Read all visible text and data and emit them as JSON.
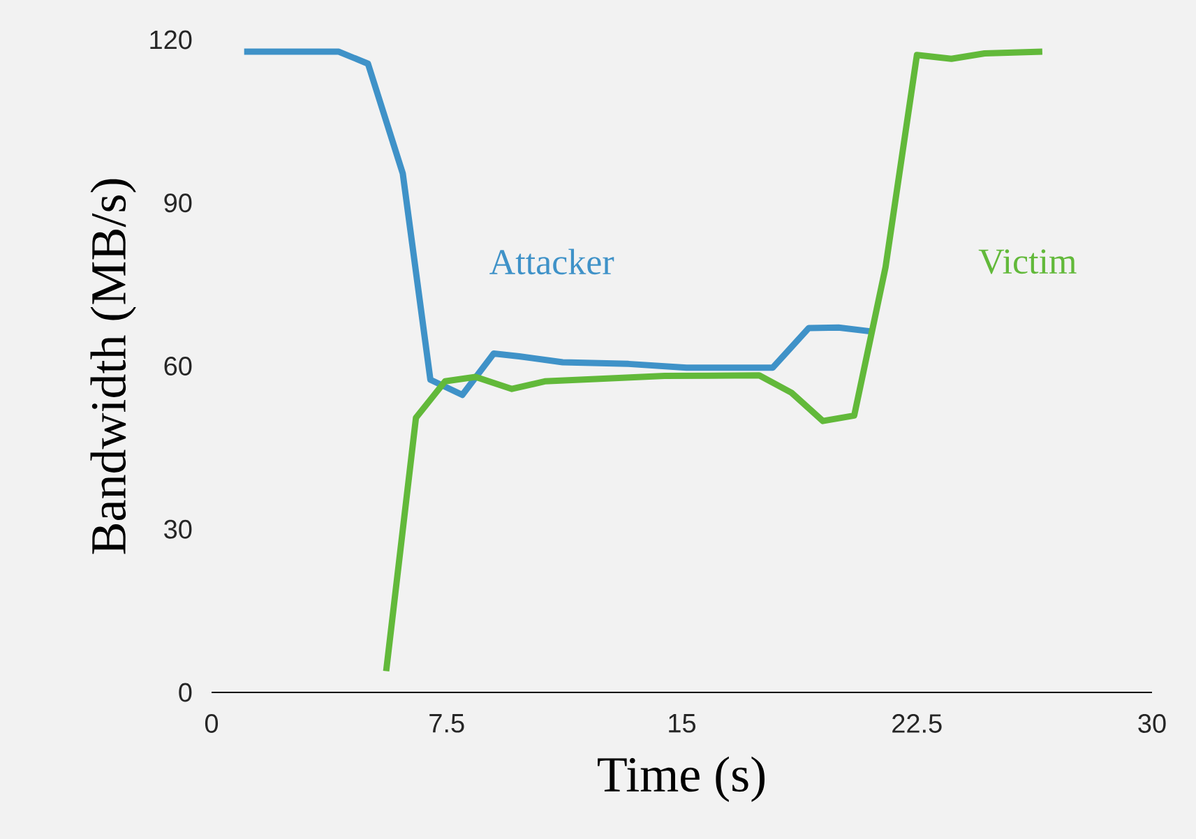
{
  "chart_data": {
    "type": "line",
    "xlabel": "Time (s)",
    "ylabel": "Bandwidth (MB/s)",
    "xlim": [
      0,
      30
    ],
    "ylim": [
      0,
      120
    ],
    "xticks": [
      0,
      7.5,
      15,
      22.5,
      30
    ],
    "yticks": [
      0,
      30,
      60,
      90,
      120
    ],
    "grid": false,
    "legend": false,
    "marker": "none",
    "line_style": "solid",
    "series": [
      {
        "name": "Attacker",
        "color": "#3f92c8",
        "x": [
          1.04,
          4.06,
          4.99,
          6.1,
          6.98,
          8.0,
          9.0,
          9.81,
          11.2,
          13.3,
          15.15,
          17.9,
          19.05,
          20.0,
          21.0
        ],
        "values": [
          117.8,
          117.8,
          115.6,
          95.4,
          57.5,
          54.7,
          62.3,
          61.8,
          60.7,
          60.4,
          59.7,
          59.7,
          67.0,
          67.1,
          66.4
        ]
      },
      {
        "name": "Victim",
        "color": "#62b93a",
        "x": [
          5.57,
          6.52,
          7.45,
          8.42,
          9.58,
          10.63,
          12.13,
          14.45,
          17.47,
          18.5,
          19.5,
          20.5,
          21.5,
          22.5,
          23.6,
          24.66,
          26.5
        ],
        "values": [
          3.9,
          50.5,
          57.2,
          58.0,
          55.8,
          57.2,
          57.6,
          58.2,
          58.3,
          55.1,
          49.9,
          50.9,
          78.2,
          117.2,
          116.5,
          117.5,
          117.8
        ]
      }
    ]
  }
}
